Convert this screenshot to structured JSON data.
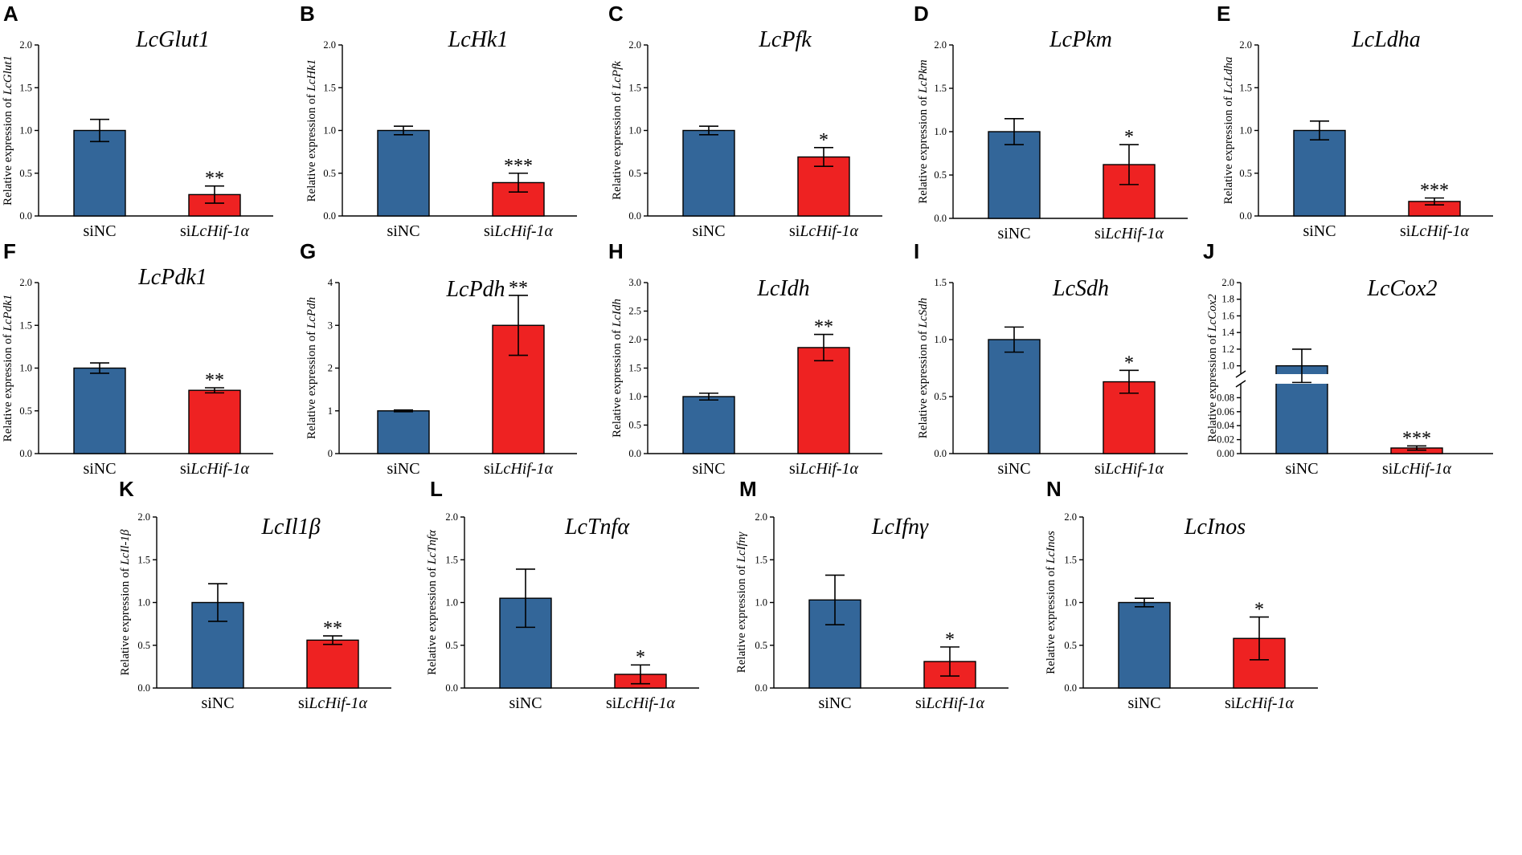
{
  "figure": {
    "colors": {
      "control": "#336699",
      "treatment": "#ee2222"
    }
  },
  "chart_data": [
    {
      "type": "bar",
      "panel": "A",
      "title": "LcGlut1",
      "ylabel_prefix": "Relative expression of ",
      "ylabel_gene": "LcGlut1",
      "categories": [
        "siNC",
        "siLcHif-1α"
      ],
      "cat_prefix": "si",
      "cat_gene": "LcHif-1α",
      "values": [
        1.0,
        0.25
      ],
      "errors": [
        0.13,
        0.1
      ],
      "significance": [
        "",
        "**"
      ],
      "ylim": [
        0,
        2.0
      ],
      "yticks": [
        "0.0",
        "0.5",
        "1.0",
        "1.5",
        "2.0"
      ]
    },
    {
      "type": "bar",
      "panel": "B",
      "title": "LcHk1",
      "ylabel_prefix": "Relative expression of ",
      "ylabel_gene": "LcHk1",
      "categories": [
        "siNC",
        "siLcHif-1α"
      ],
      "cat_prefix": "si",
      "cat_gene": "LcHif-1α",
      "values": [
        1.0,
        0.39
      ],
      "errors": [
        0.05,
        0.11
      ],
      "significance": [
        "",
        "***"
      ],
      "ylim": [
        0,
        2.0
      ],
      "yticks": [
        "0.0",
        "0.5",
        "1.0",
        "1.5",
        "2.0"
      ]
    },
    {
      "type": "bar",
      "panel": "C",
      "title": "LcPfk",
      "ylabel_prefix": "Relative expression of ",
      "ylabel_gene": "LcPfk",
      "categories": [
        "siNC",
        "siLcHif-1α"
      ],
      "cat_prefix": "si",
      "cat_gene": "LcHif-1α",
      "values": [
        1.0,
        0.69
      ],
      "errors": [
        0.05,
        0.11
      ],
      "significance": [
        "",
        "*"
      ],
      "ylim": [
        0,
        2.0
      ],
      "yticks": [
        "0.0",
        "0.5",
        "1.0",
        "1.5",
        "2.0"
      ]
    },
    {
      "type": "bar",
      "panel": "D",
      "title": "LcPkm",
      "ylabel_prefix": "Relative expression of ",
      "ylabel_gene": "LcPkm",
      "categories": [
        "siNC",
        "siLcHif-1α"
      ],
      "cat_prefix": "si",
      "cat_gene": "LcHif-1α",
      "values": [
        1.0,
        0.62
      ],
      "errors": [
        0.15,
        0.23
      ],
      "significance": [
        "",
        "*"
      ],
      "ylim": [
        0,
        2.0
      ],
      "yticks": [
        "0.0",
        "0.5",
        "1.0",
        "1.5",
        "2.0"
      ]
    },
    {
      "type": "bar",
      "panel": "E",
      "title": "LcLdha",
      "ylabel_prefix": "Relative expression of ",
      "ylabel_gene": "LcLdha",
      "categories": [
        "siNC",
        "siLcHif-1α"
      ],
      "cat_prefix": "si",
      "cat_gene": "LcHif-1α",
      "values": [
        1.0,
        0.17
      ],
      "errors": [
        0.11,
        0.04
      ],
      "significance": [
        "",
        "***"
      ],
      "ylim": [
        0,
        2.0
      ],
      "yticks": [
        "0.0",
        "0.5",
        "1.0",
        "1.5",
        "2.0"
      ]
    },
    {
      "type": "bar",
      "panel": "F",
      "title": "LcPdk1",
      "ylabel_prefix": "Relative expression of ",
      "ylabel_gene": "LcPdk1",
      "categories": [
        "siNC",
        "siLcHif-1α"
      ],
      "cat_prefix": "si",
      "cat_gene": "LcHif-1α",
      "values": [
        1.0,
        0.74
      ],
      "errors": [
        0.06,
        0.03
      ],
      "significance": [
        "",
        "**"
      ],
      "ylim": [
        0,
        2.0
      ],
      "yticks": [
        "0.0",
        "0.5",
        "1.0",
        "1.5",
        "2.0"
      ]
    },
    {
      "type": "bar",
      "panel": "G",
      "title": "LcPdh",
      "ylabel_prefix": "Relative expression of ",
      "ylabel_gene": "LcPdh",
      "categories": [
        "siNC",
        "siLcHif-1α"
      ],
      "cat_prefix": "si",
      "cat_gene": "LcHif-1α",
      "values": [
        1.0,
        3.0
      ],
      "errors": [
        0.02,
        0.7
      ],
      "significance": [
        "",
        "**"
      ],
      "ylim": [
        0,
        4
      ],
      "yticks": [
        "0",
        "1",
        "2",
        "3",
        "4"
      ]
    },
    {
      "type": "bar",
      "panel": "H",
      "title": "LcIdh",
      "ylabel_prefix": "Relative expression of ",
      "ylabel_gene": "LcIdh",
      "categories": [
        "siNC",
        "siLcHif-1α"
      ],
      "cat_prefix": "si",
      "cat_gene": "LcHif-1α",
      "values": [
        1.0,
        1.86
      ],
      "errors": [
        0.06,
        0.23
      ],
      "significance": [
        "",
        "**"
      ],
      "ylim": [
        0,
        3.0
      ],
      "yticks": [
        "0.0",
        "0.5",
        "1.0",
        "1.5",
        "2.0",
        "2.5",
        "3.0"
      ]
    },
    {
      "type": "bar",
      "panel": "I",
      "title": "LcSdh",
      "ylabel_prefix": "Relative expression of ",
      "ylabel_gene": "LcSdh",
      "categories": [
        "siNC",
        "siLcHif-1α"
      ],
      "cat_prefix": "si",
      "cat_gene": "LcHif-1α",
      "values": [
        1.0,
        0.63
      ],
      "errors": [
        0.11,
        0.1
      ],
      "significance": [
        "",
        "*"
      ],
      "ylim": [
        0,
        1.5
      ],
      "yticks": [
        "0.0",
        "0.5",
        "1.0",
        "1.5"
      ]
    },
    {
      "type": "bar",
      "panel": "J",
      "title": "LcCox2",
      "ylabel_prefix": "Relative expression of ",
      "ylabel_gene": "LcCox2",
      "categories": [
        "siNC",
        "siLcHif-1α"
      ],
      "cat_prefix": "si",
      "cat_gene": "LcHif-1α",
      "values": [
        1.0,
        0.008
      ],
      "errors": [
        0.2,
        0.003
      ],
      "significance": [
        "",
        "***"
      ],
      "broken_axis": {
        "lower": [
          0,
          0.1
        ],
        "upper": [
          0.9,
          2.0
        ]
      },
      "yticks_lower": [
        "0.00",
        "0.02",
        "0.04",
        "0.06",
        "0.08"
      ],
      "yticks_upper": [
        "1.0",
        "1.2",
        "1.4",
        "1.6",
        "1.8",
        "2.0"
      ]
    },
    {
      "type": "bar",
      "panel": "K",
      "title": "LcIl1β",
      "ylabel_prefix": "Relative expression of ",
      "ylabel_gene": "LcIl-1β",
      "categories": [
        "siNC",
        "siLcHif-1α"
      ],
      "cat_prefix": "si",
      "cat_gene": "LcHif-1α",
      "values": [
        1.0,
        0.56
      ],
      "errors": [
        0.22,
        0.05
      ],
      "significance": [
        "",
        "**"
      ],
      "ylim": [
        0,
        2.0
      ],
      "yticks": [
        "0.0",
        "0.5",
        "1.0",
        "1.5",
        "2.0"
      ]
    },
    {
      "type": "bar",
      "panel": "L",
      "title": "LcTnfα",
      "ylabel_prefix": "Relative expression of ",
      "ylabel_gene": "LcTnfα",
      "categories": [
        "siNC",
        "siLcHif-1α"
      ],
      "cat_prefix": "si",
      "cat_gene": "LcHif-1α",
      "values": [
        1.05,
        0.16
      ],
      "errors": [
        0.34,
        0.11
      ],
      "significance": [
        "",
        "*"
      ],
      "ylim": [
        0,
        2.0
      ],
      "yticks": [
        "0.0",
        "0.5",
        "1.0",
        "1.5",
        "2.0"
      ]
    },
    {
      "type": "bar",
      "panel": "M",
      "title": "LcIfnγ",
      "ylabel_prefix": "Relative expression of ",
      "ylabel_gene": "LcIfnγ",
      "categories": [
        "siNC",
        "siLcHif-1α"
      ],
      "cat_prefix": "si",
      "cat_gene": "LcHif-1α",
      "values": [
        1.03,
        0.31
      ],
      "errors": [
        0.29,
        0.17
      ],
      "significance": [
        "",
        "*"
      ],
      "ylim": [
        0,
        2.0
      ],
      "yticks": [
        "0.0",
        "0.5",
        "1.0",
        "1.5",
        "2.0"
      ]
    },
    {
      "type": "bar",
      "panel": "N",
      "title": "LcInos",
      "ylabel_prefix": "Relative expression of ",
      "ylabel_gene": "LcInos",
      "categories": [
        "siNC",
        "siLcHif-1α"
      ],
      "cat_prefix": "si",
      "cat_gene": "LcHif-1α",
      "values": [
        1.0,
        0.58
      ],
      "errors": [
        0.05,
        0.25
      ],
      "significance": [
        "",
        "*"
      ],
      "ylim": [
        0,
        2.0
      ],
      "yticks": [
        "0.0",
        "0.5",
        "1.0",
        "1.5",
        "2.0"
      ]
    }
  ]
}
